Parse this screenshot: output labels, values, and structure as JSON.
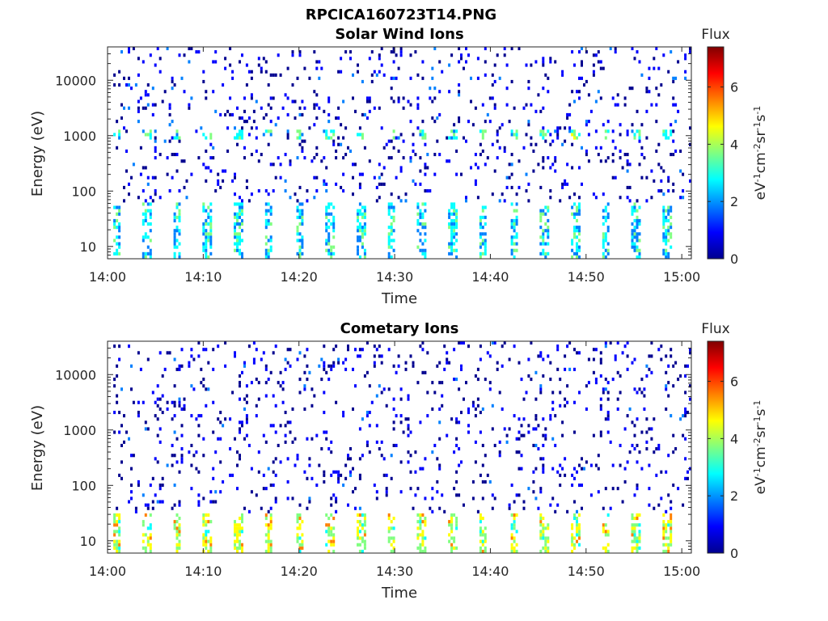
{
  "figure": {
    "title": "RPCICA160723T14.PNG"
  },
  "colormap": [
    "#00008f",
    "#0000ff",
    "#0080ff",
    "#00ffff",
    "#80ff80",
    "#ffff00",
    "#ff8000",
    "#ff0000",
    "#800000"
  ],
  "chart_data": [
    {
      "type": "heatmap",
      "title": "Solar Wind Ions",
      "xlabel": "Time",
      "ylabel": "Energy (eV)",
      "x_tick_labels": [
        "14:00",
        "14:10",
        "14:20",
        "14:30",
        "14:40",
        "14:50",
        "15:00"
      ],
      "xlim_minutes": [
        0,
        61
      ],
      "y_scale": "log",
      "y_tick_labels": [
        "10",
        "100",
        "1000",
        "10000"
      ],
      "ylim": [
        6,
        40000
      ],
      "colorbar": {
        "title": "Flux",
        "label": "eV-1cm-2sr-1s-1",
        "ticks": [
          "0",
          "2",
          "4",
          "6"
        ],
        "clim": [
          0,
          7.4
        ]
      },
      "scan_period_min": 3.2,
      "bands": [
        {
          "energy_range": [
            6,
            60
          ],
          "level": 2.6,
          "description": "periodic low-energy bursts"
        },
        {
          "energy_range": [
            800,
            1300
          ],
          "level": 3.1,
          "description": "periodic peaks near 1 keV"
        },
        {
          "energy_range": [
            60,
            40000
          ],
          "level": 0.5,
          "description": "sparse scattered counts"
        }
      ]
    },
    {
      "type": "heatmap",
      "title": "Cometary Ions",
      "xlabel": "Time",
      "ylabel": "Energy (eV)",
      "x_tick_labels": [
        "14:00",
        "14:10",
        "14:20",
        "14:30",
        "14:40",
        "14:50",
        "15:00"
      ],
      "xlim_minutes": [
        0,
        61
      ],
      "y_scale": "log",
      "y_tick_labels": [
        "10",
        "100",
        "1000",
        "10000"
      ],
      "ylim": [
        6,
        40000
      ],
      "colorbar": {
        "title": "Flux",
        "label": "eV-1cm-2sr-1s-1",
        "ticks": [
          "0",
          "2",
          "4",
          "6"
        ],
        "clim": [
          0,
          7.4
        ]
      },
      "scan_period_min": 3.2,
      "bands": [
        {
          "energy_range": [
            6,
            30
          ],
          "level": 4.2,
          "description": "periodic bursts, peak flux ~6"
        },
        {
          "energy_range": [
            30,
            40000
          ],
          "level": 0.4,
          "description": "sparse scattered counts"
        }
      ]
    }
  ]
}
